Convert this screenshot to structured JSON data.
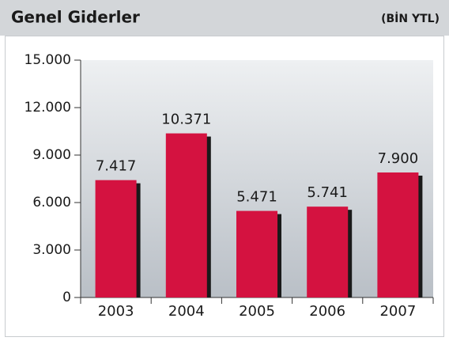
{
  "chart_data": {
    "type": "bar",
    "title": "Genel Giderler",
    "subtitle": "(BİN YTL)",
    "categories": [
      "2003",
      "2004",
      "2005",
      "2006",
      "2007"
    ],
    "values": [
      7417,
      10371,
      5471,
      5741,
      7900
    ],
    "value_labels": [
      "7.417",
      "10.371",
      "5.471",
      "5.741",
      "7.900"
    ],
    "color": "#d41240",
    "ylim": [
      0,
      15000
    ],
    "yticks": [
      {
        "value": 0,
        "label": "0"
      },
      {
        "value": 3000,
        "label": "3.000"
      },
      {
        "value": 6000,
        "label": "6.000"
      },
      {
        "value": 9000,
        "label": "9.000"
      },
      {
        "value": 12000,
        "label": "12.000"
      },
      {
        "value": 15000,
        "label": "15.000"
      }
    ]
  }
}
